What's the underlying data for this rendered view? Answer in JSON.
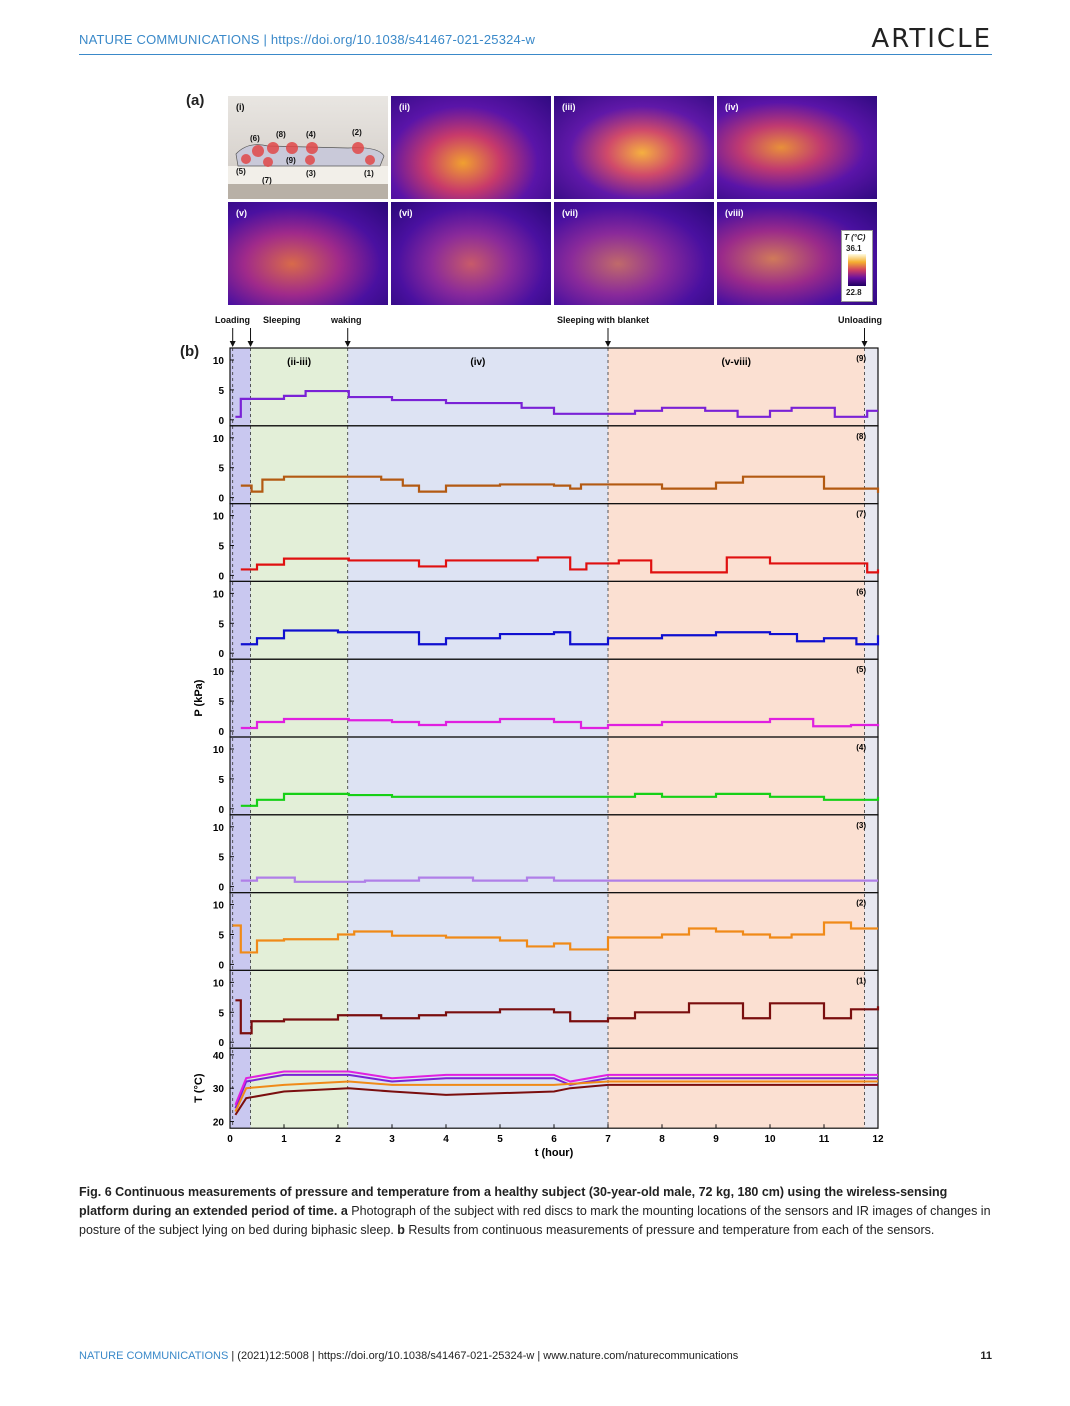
{
  "header": {
    "journal_link": "NATURE COMMUNICATIONS | https://doi.org/10.1038/s41467-021-25324-w",
    "article_label": "ARTICLE"
  },
  "figure": {
    "panel_a_label": "(a)",
    "panel_b_label": "(b)",
    "ir_images": [
      {
        "label": "(i)"
      },
      {
        "label": "(ii)"
      },
      {
        "label": "(iii)"
      },
      {
        "label": "(iv)"
      },
      {
        "label": "(v)"
      },
      {
        "label": "(vi)"
      },
      {
        "label": "(vii)"
      },
      {
        "label": "(viii)"
      }
    ],
    "sensor_marks": [
      "(1)",
      "(2)",
      "(3)",
      "(4)",
      "(5)",
      "(6)",
      "(7)",
      "(8)",
      "(9)"
    ],
    "colorbar": {
      "title": "T (°C)",
      "max": "36.1",
      "min": "22.8"
    },
    "events": [
      "Loading",
      "Sleeping",
      "waking",
      "Sleeping with blanket",
      "Unloading"
    ]
  },
  "chart_data": {
    "type": "line",
    "x_label": "t (hour)",
    "x_ticks": [
      "0",
      "1",
      "2",
      "3",
      "4",
      "5",
      "6",
      "7",
      "8",
      "9",
      "10",
      "11",
      "12"
    ],
    "xlim": [
      0,
      12
    ],
    "pressure_ylabel": "P (kPa)",
    "pressure_yticks": [
      "0",
      "5",
      "10"
    ],
    "temperature_ylabel": "T (°C)",
    "temperature_yticks": [
      "20",
      "30",
      "40"
    ],
    "phase_labels": [
      "(ii-iii)",
      "(iv)",
      "(v-viii)"
    ],
    "phases": [
      {
        "start": 0,
        "end": 0.38,
        "color": "#c9c8f0"
      },
      {
        "start": 0.38,
        "end": 2.18,
        "color": "#e3efd8"
      },
      {
        "start": 2.18,
        "end": 7.0,
        "color": "#dde3f3"
      },
      {
        "start": 7.0,
        "end": 11.75,
        "color": "#fbe0d2"
      },
      {
        "start": 11.75,
        "end": 12,
        "color": "#e8e8f0"
      }
    ],
    "event_times": [
      0.05,
      0.38,
      2.18,
      7.0,
      11.75
    ],
    "series": [
      {
        "name": "(9)",
        "color": "#7a22d6",
        "points": [
          [
            0.1,
            0.5
          ],
          [
            0.2,
            3.5
          ],
          [
            0.4,
            3.5
          ],
          [
            1,
            4.0
          ],
          [
            1.4,
            4.8
          ],
          [
            2.2,
            3.8
          ],
          [
            3,
            3.3
          ],
          [
            4,
            2.8
          ],
          [
            4.8,
            2.8
          ],
          [
            5.4,
            2.0
          ],
          [
            6,
            1.0
          ],
          [
            7,
            1.0
          ],
          [
            7.5,
            1.5
          ],
          [
            8,
            2.0
          ],
          [
            8.8,
            1.5
          ],
          [
            9.4,
            0.5
          ],
          [
            10,
            1.5
          ],
          [
            10.4,
            2.0
          ],
          [
            11.2,
            0.5
          ],
          [
            11.8,
            1.5
          ],
          [
            12,
            1.5
          ]
        ]
      },
      {
        "name": "(8)",
        "color": "#b35a12",
        "points": [
          [
            0.2,
            2.0
          ],
          [
            0.4,
            1.0
          ],
          [
            0.6,
            3.0
          ],
          [
            1,
            3.5
          ],
          [
            2.2,
            3.5
          ],
          [
            2.8,
            3.0
          ],
          [
            3.2,
            2.0
          ],
          [
            3.5,
            1.0
          ],
          [
            4,
            2.0
          ],
          [
            5,
            2.2
          ],
          [
            6,
            2.0
          ],
          [
            6.3,
            1.5
          ],
          [
            6.5,
            2.2
          ],
          [
            7,
            2.2
          ],
          [
            8,
            1.5
          ],
          [
            9,
            2.5
          ],
          [
            9.5,
            3.5
          ],
          [
            10.8,
            3.5
          ],
          [
            11,
            1.5
          ],
          [
            11.5,
            1.5
          ],
          [
            12,
            0.8
          ]
        ]
      },
      {
        "name": "(7)",
        "color": "#e01010",
        "points": [
          [
            0.2,
            1.0
          ],
          [
            0.5,
            1.8
          ],
          [
            1,
            2.8
          ],
          [
            2.2,
            2.5
          ],
          [
            3,
            2.5
          ],
          [
            3.5,
            1.5
          ],
          [
            4,
            2.5
          ],
          [
            5,
            2.5
          ],
          [
            5.7,
            3.0
          ],
          [
            6.3,
            1.0
          ],
          [
            6.6,
            2.0
          ],
          [
            7.2,
            2.5
          ],
          [
            7.8,
            0.5
          ],
          [
            9,
            0.5
          ],
          [
            9.2,
            3.0
          ],
          [
            10,
            2.0
          ],
          [
            11.5,
            2.0
          ],
          [
            11.8,
            0.5
          ],
          [
            12,
            1.0
          ]
        ]
      },
      {
        "name": "(6)",
        "color": "#1010d0",
        "points": [
          [
            0.2,
            1.5
          ],
          [
            0.5,
            2.5
          ],
          [
            1,
            3.8
          ],
          [
            2,
            3.5
          ],
          [
            3,
            3.5
          ],
          [
            3.5,
            1.5
          ],
          [
            4,
            2.5
          ],
          [
            5,
            3.2
          ],
          [
            6,
            3.5
          ],
          [
            6.3,
            1.5
          ],
          [
            7,
            2.5
          ],
          [
            8,
            3.0
          ],
          [
            9,
            3.5
          ],
          [
            10,
            3.2
          ],
          [
            10.5,
            2.0
          ],
          [
            11,
            2.5
          ],
          [
            11.6,
            1.5
          ],
          [
            12,
            3.0
          ]
        ]
      },
      {
        "name": "(5)",
        "color": "#e020e0",
        "points": [
          [
            0.2,
            0.5
          ],
          [
            0.5,
            1.5
          ],
          [
            1,
            2.0
          ],
          [
            2.2,
            1.8
          ],
          [
            3,
            1.5
          ],
          [
            3.5,
            1.0
          ],
          [
            4,
            1.5
          ],
          [
            5,
            2.0
          ],
          [
            6,
            1.5
          ],
          [
            6.5,
            0.5
          ],
          [
            7,
            1.0
          ],
          [
            8,
            1.5
          ],
          [
            9,
            1.5
          ],
          [
            10,
            2.0
          ],
          [
            10.8,
            0.8
          ],
          [
            11.5,
            1.0
          ],
          [
            12,
            0.8
          ]
        ]
      },
      {
        "name": "(4)",
        "color": "#16d016",
        "points": [
          [
            0.2,
            0.5
          ],
          [
            0.5,
            1.5
          ],
          [
            1,
            2.5
          ],
          [
            2.2,
            2.3
          ],
          [
            3,
            2.0
          ],
          [
            4,
            2.0
          ],
          [
            5,
            2.0
          ],
          [
            6,
            2.0
          ],
          [
            7,
            2.0
          ],
          [
            7.5,
            2.5
          ],
          [
            8,
            2.0
          ],
          [
            9,
            2.5
          ],
          [
            10,
            2.0
          ],
          [
            11,
            1.5
          ],
          [
            12,
            2.0
          ]
        ]
      },
      {
        "name": "(3)",
        "color": "#b07fe8",
        "points": [
          [
            0.2,
            1.0
          ],
          [
            0.5,
            1.5
          ],
          [
            1.2,
            0.8
          ],
          [
            2.5,
            1.0
          ],
          [
            3.5,
            1.5
          ],
          [
            4.5,
            1.0
          ],
          [
            5.5,
            1.5
          ],
          [
            6,
            1.0
          ],
          [
            7,
            1.0
          ],
          [
            12,
            1.0
          ]
        ]
      },
      {
        "name": "(2)",
        "color": "#f08a18",
        "points": [
          [
            0.05,
            6.5
          ],
          [
            0.2,
            2.0
          ],
          [
            0.5,
            4.0
          ],
          [
            1,
            4.2
          ],
          [
            2,
            5.0
          ],
          [
            2.3,
            5.5
          ],
          [
            3,
            4.8
          ],
          [
            4,
            4.5
          ],
          [
            5,
            4.0
          ],
          [
            5.5,
            3.0
          ],
          [
            6,
            3.5
          ],
          [
            6.3,
            2.5
          ],
          [
            7,
            4.5
          ],
          [
            8,
            5.0
          ],
          [
            8.5,
            6.0
          ],
          [
            9,
            5.5
          ],
          [
            9.5,
            5.0
          ],
          [
            10,
            4.5
          ],
          [
            10.4,
            5.0
          ],
          [
            11,
            7.0
          ],
          [
            11.5,
            6.0
          ],
          [
            12,
            6.0
          ]
        ]
      },
      {
        "name": "(1)",
        "color": "#7a0e0e",
        "points": [
          [
            0.1,
            7.0
          ],
          [
            0.2,
            1.5
          ],
          [
            0.4,
            3.5
          ],
          [
            1,
            3.8
          ],
          [
            2,
            4.5
          ],
          [
            2.8,
            4.0
          ],
          [
            3.5,
            4.5
          ],
          [
            4,
            5.0
          ],
          [
            5,
            5.5
          ],
          [
            6,
            5.0
          ],
          [
            6.3,
            3.5
          ],
          [
            7,
            4.0
          ],
          [
            7.5,
            5.0
          ],
          [
            8.5,
            6.5
          ],
          [
            9,
            6.5
          ],
          [
            9.5,
            4.0
          ],
          [
            10,
            6.5
          ],
          [
            10.5,
            6.5
          ],
          [
            11,
            4.0
          ],
          [
            11.5,
            5.5
          ],
          [
            12,
            6.0
          ]
        ]
      }
    ],
    "temperature_series": [
      {
        "name": "(9)",
        "color": "#7a22d6",
        "points": [
          [
            0.1,
            24
          ],
          [
            0.3,
            32
          ],
          [
            1,
            34
          ],
          [
            2.2,
            34
          ],
          [
            3,
            32
          ],
          [
            4,
            33
          ],
          [
            6,
            33
          ],
          [
            6.3,
            31
          ],
          [
            7,
            33
          ],
          [
            12,
            33
          ]
        ]
      },
      {
        "name": "(5)",
        "color": "#e020e0",
        "points": [
          [
            0.1,
            25
          ],
          [
            0.3,
            33
          ],
          [
            1,
            35
          ],
          [
            2.2,
            35
          ],
          [
            3,
            33
          ],
          [
            4,
            34
          ],
          [
            6,
            34
          ],
          [
            6.3,
            32
          ],
          [
            7,
            34
          ],
          [
            12,
            34
          ]
        ]
      },
      {
        "name": "(1)",
        "color": "#7a0e0e",
        "points": [
          [
            0.1,
            22
          ],
          [
            0.3,
            27
          ],
          [
            1,
            29
          ],
          [
            2.2,
            30
          ],
          [
            3,
            29
          ],
          [
            4,
            28
          ],
          [
            6,
            29
          ],
          [
            6.3,
            30
          ],
          [
            7,
            31
          ],
          [
            12,
            31
          ]
        ]
      },
      {
        "name": "(2)",
        "color": "#f08a18",
        "points": [
          [
            0.1,
            23
          ],
          [
            0.3,
            30
          ],
          [
            1,
            31
          ],
          [
            2.2,
            32
          ],
          [
            3,
            31
          ],
          [
            4,
            31
          ],
          [
            6,
            31
          ],
          [
            7,
            32
          ],
          [
            12,
            32
          ]
        ]
      }
    ]
  },
  "caption": {
    "fig_title": "Fig. 6 Continuous measurements of pressure and temperature from a healthy subject (30-year-old male, 72 kg, 180 cm) using the wireless-sensing platform during an extended period of time.",
    "part_a_label": "a",
    "part_a_text": "Photograph of the subject with red discs to mark the mounting locations of the sensors and IR images of changes in posture of the subject lying on bed during biphasic sleep.",
    "part_b_label": "b",
    "part_b_text": "Results from continuous measurements of pressure and temperature from each of the sensors."
  },
  "footer": {
    "brand": "NATURE COMMUNICATIONS",
    "citation": "| (2021)12:5008 | https://doi.org/10.1038/s41467-021-25324-w | www.nature.com/naturecommunications",
    "page_number": "11"
  }
}
